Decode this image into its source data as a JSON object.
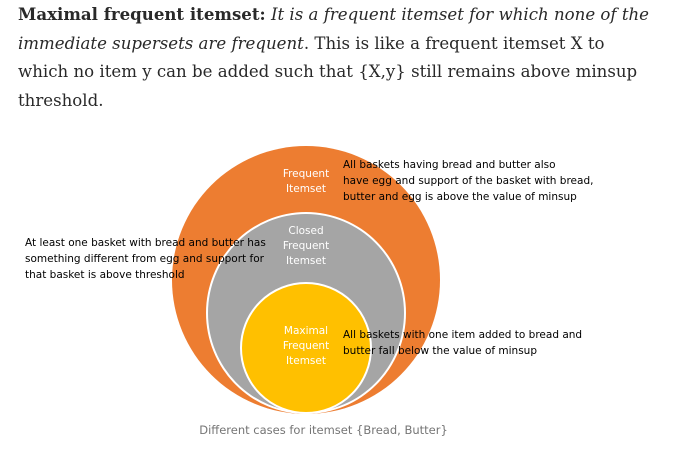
{
  "paragraph": {
    "term": "Maximal frequent itemset:",
    "definition": "It is a frequent itemset for which none of the immediate supersets are frequent",
    "rest": ". This is like a frequent itemset X to which no item y can be added such that {X,y} still remains above minsup threshold."
  },
  "figure": {
    "circles": {
      "frequent": {
        "label_line1": "Frequent",
        "label_line2": "Itemset",
        "color": "#ED7D31"
      },
      "closed": {
        "label_line1": "Closed",
        "label_line2": "Frequent",
        "label_line3": "Itemset",
        "color": "#A5A5A5"
      },
      "maximal": {
        "label_line1": "Maximal",
        "label_line2": "Frequent",
        "label_line3": "Itemset",
        "color": "#FFC000"
      }
    },
    "annotations": {
      "frequent_note": "All baskets having bread and butter also\nhave egg and support of the basket with bread,\nbutter and egg is above the value of minsup",
      "closed_note": "At least one basket with bread and butter has\nsomething different from egg and support for\nthat basket is above threshold",
      "maximal_note": "All baskets with one item added to bread and\nbutter fall below the value of minsup"
    },
    "caption": "Different cases for itemset {Bread, Butter}"
  }
}
